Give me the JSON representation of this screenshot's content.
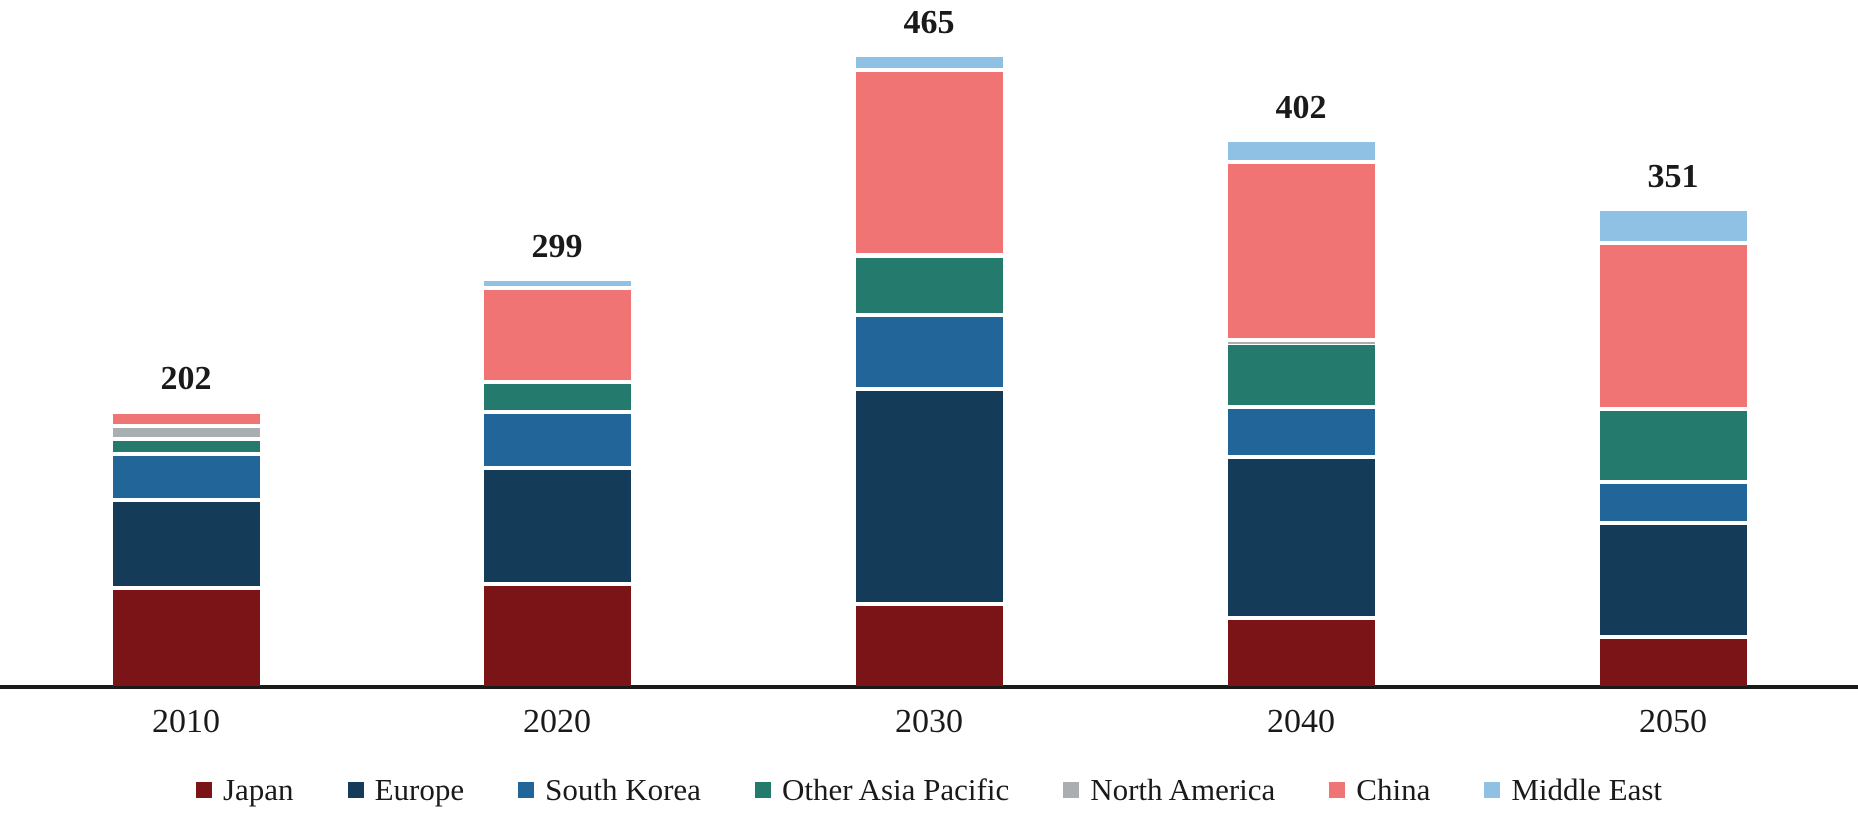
{
  "chart_data": {
    "type": "bar",
    "stacked": true,
    "title": "",
    "xlabel": "",
    "ylabel": "",
    "grid": false,
    "legend_position": "bottom",
    "background": "#ffffff",
    "axis_color": "#1a1a1a",
    "categories": [
      "2010",
      "2020",
      "2030",
      "2040",
      "2050"
    ],
    "series": [
      {
        "name": "Japan",
        "color": "#7a1416",
        "values": [
          71,
          74,
          59,
          49,
          35
        ]
      },
      {
        "name": "Europe",
        "color": "#143c59",
        "values": [
          65,
          86,
          159,
          119,
          84
        ]
      },
      {
        "name": "South Korea",
        "color": "#226699",
        "values": [
          34,
          41,
          55,
          37,
          30
        ]
      },
      {
        "name": "Other Asia Pacific",
        "color": "#257a6e",
        "values": [
          11,
          22,
          43,
          47,
          54
        ]
      },
      {
        "name": "North America",
        "color": "#a8aeb2",
        "values": [
          10,
          0,
          1,
          2,
          0
        ]
      },
      {
        "name": "China",
        "color": "#f07473",
        "values": [
          10,
          70,
          137,
          132,
          123
        ]
      },
      {
        "name": "Middle East",
        "color": "#8fc1e4",
        "values": [
          1,
          6,
          11,
          16,
          25
        ]
      }
    ],
    "totals": [
      202,
      299,
      465,
      402,
      351
    ]
  }
}
